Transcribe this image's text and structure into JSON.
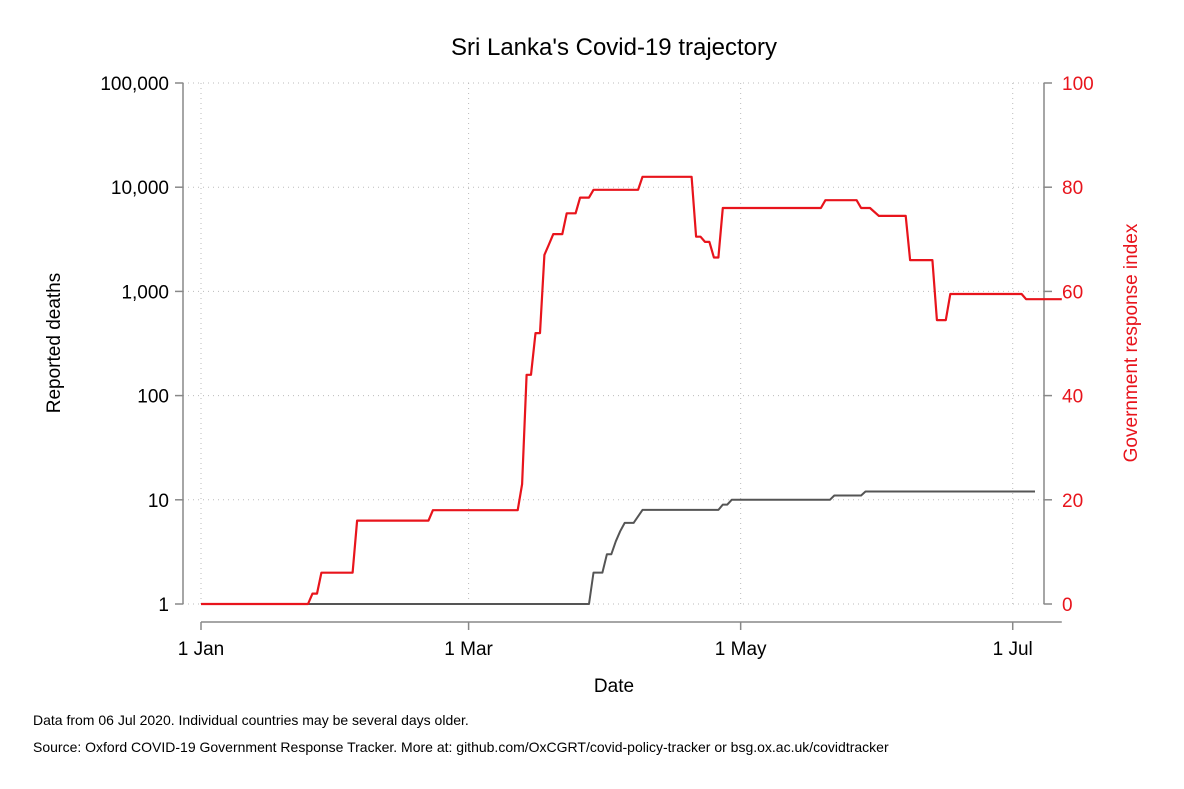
{
  "chart_data": {
    "type": "line",
    "title": "Sri Lanka's Covid-19 trajectory",
    "xlabel": "Date",
    "ylabel_left": "Reported deaths",
    "ylabel_right": "Government response index",
    "x_ticks": [
      "1 Jan",
      "1 Mar",
      "1 May",
      "1 Jul"
    ],
    "y_left_scale": "log",
    "y_left_ticks": [
      "1",
      "10",
      "100",
      "1,000",
      "10,000",
      "100,000"
    ],
    "y_left_range": [
      1,
      100000
    ],
    "y_right_ticks": [
      "0",
      "20",
      "40",
      "60",
      "80",
      "100"
    ],
    "y_right_range": [
      0,
      100
    ],
    "grid": true,
    "colors": {
      "deaths": "#555555",
      "response": "#e8141c",
      "axis": "#888888",
      "grid": "#bbbbbb"
    },
    "series": [
      {
        "axis": "left",
        "color": "#555555",
        "points": [
          [
            "2020-01-01",
            1
          ],
          [
            "2020-03-28",
            1
          ],
          [
            "2020-03-29",
            2
          ],
          [
            "2020-03-31",
            2
          ],
          [
            "2020-04-01",
            3
          ],
          [
            "2020-04-02",
            3
          ],
          [
            "2020-04-03",
            4
          ],
          [
            "2020-04-04",
            5
          ],
          [
            "2020-04-05",
            6
          ],
          [
            "2020-04-07",
            6
          ],
          [
            "2020-04-09",
            8
          ],
          [
            "2020-04-26",
            8
          ],
          [
            "2020-04-27",
            9
          ],
          [
            "2020-04-28",
            9
          ],
          [
            "2020-04-29",
            10
          ],
          [
            "2020-05-21",
            10
          ],
          [
            "2020-05-22",
            11
          ],
          [
            "2020-05-28",
            11
          ],
          [
            "2020-05-29",
            12
          ],
          [
            "2020-07-06",
            12
          ]
        ]
      },
      {
        "axis": "right",
        "color": "#e8141c",
        "points": [
          [
            "2020-01-01",
            0
          ],
          [
            "2020-01-25",
            0
          ],
          [
            "2020-01-26",
            2
          ],
          [
            "2020-01-27",
            2
          ],
          [
            "2020-01-28",
            6
          ],
          [
            "2020-02-04",
            6
          ],
          [
            "2020-02-05",
            16
          ],
          [
            "2020-02-21",
            16
          ],
          [
            "2020-02-22",
            18
          ],
          [
            "2020-03-12",
            18
          ],
          [
            "2020-03-13",
            23
          ],
          [
            "2020-03-14",
            44
          ],
          [
            "2020-03-15",
            44
          ],
          [
            "2020-03-16",
            52
          ],
          [
            "2020-03-17",
            52
          ],
          [
            "2020-03-18",
            67
          ],
          [
            "2020-03-19",
            69
          ],
          [
            "2020-03-20",
            71
          ],
          [
            "2020-03-22",
            71
          ],
          [
            "2020-03-23",
            75
          ],
          [
            "2020-03-25",
            75
          ],
          [
            "2020-03-26",
            78
          ],
          [
            "2020-03-28",
            78
          ],
          [
            "2020-03-29",
            79.5
          ],
          [
            "2020-04-08",
            79.5
          ],
          [
            "2020-04-09",
            82
          ],
          [
            "2020-04-20",
            82
          ],
          [
            "2020-04-21",
            70.5
          ],
          [
            "2020-04-22",
            70.5
          ],
          [
            "2020-04-23",
            69.5
          ],
          [
            "2020-04-24",
            69.5
          ],
          [
            "2020-04-25",
            66.5
          ],
          [
            "2020-04-26",
            66.5
          ],
          [
            "2020-04-27",
            76
          ],
          [
            "2020-05-19",
            76
          ],
          [
            "2020-05-20",
            77.5
          ],
          [
            "2020-05-27",
            77.5
          ],
          [
            "2020-05-28",
            76
          ],
          [
            "2020-05-30",
            76
          ],
          [
            "2020-06-01",
            74.5
          ],
          [
            "2020-06-07",
            74.5
          ],
          [
            "2020-06-08",
            66
          ],
          [
            "2020-06-13",
            66
          ],
          [
            "2020-06-14",
            54.5
          ],
          [
            "2020-06-16",
            54.5
          ],
          [
            "2020-06-17",
            59.5
          ],
          [
            "2020-07-03",
            59.5
          ],
          [
            "2020-07-04",
            58.5
          ],
          [
            "2020-07-12",
            58.5
          ]
        ]
      }
    ]
  },
  "footnotes": {
    "line1": "Data from 06 Jul 2020. Individual countries may be several days older.",
    "line2": "Source: Oxford COVID-19 Government Response Tracker. More at: github.com/OxCGRT/covid-policy-tracker or bsg.ox.ac.uk/covidtracker"
  }
}
